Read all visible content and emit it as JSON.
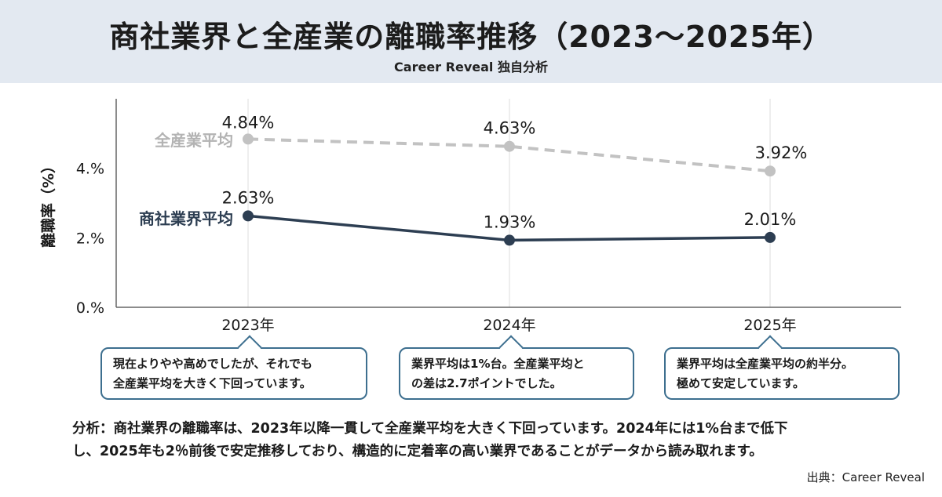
{
  "header": {
    "title": "商社業界と全産業の離職率推移（2023〜2025年）",
    "subtitle": "Career Reveal 独自分析"
  },
  "chart_data": {
    "type": "line",
    "x": [
      "2023年",
      "2024年",
      "2025年"
    ],
    "ylabel": "離職率（%）",
    "yticks": [
      "0.%",
      "2.%",
      "4.%"
    ],
    "ylim": [
      0,
      6
    ],
    "grid": "vertical",
    "series": [
      {
        "name": "全産業平均",
        "values": [
          4.84,
          4.63,
          3.92
        ],
        "labels": [
          "4.84%",
          "4.63%",
          "3.92%"
        ],
        "style": "dashed",
        "color": "#c2c2c2"
      },
      {
        "name": "商社業界平均",
        "values": [
          2.63,
          1.93,
          2.01
        ],
        "labels": [
          "2.63%",
          "1.93%",
          "2.01%"
        ],
        "style": "solid",
        "color": "#2d3e52"
      }
    ]
  },
  "callouts": [
    {
      "line1": "現在よりやや高めでしたが、それでも",
      "line2": "全産業平均を大きく下回っています。"
    },
    {
      "line1": "業界平均は1%台。全産業平均と",
      "line2": "の差は2.7ポイントでした。"
    },
    {
      "line1": "業界平均は全産業平均の約半分。",
      "line2": "極めて安定しています。"
    }
  ],
  "analysis": {
    "line1": "分析：商社業界の離職率は、2023年以降一貫して全産業平均を大きく下回っています。2024年には1%台まで低下",
    "line2": "し、2025年も2％前後で安定推移しており、構造的に定着率の高い業界であることがデータから読み取れます。"
  },
  "source": "出典：Career Reveal",
  "colors": {
    "accent_border": "#3d6f8f",
    "header_bg": "#e3e9f1"
  }
}
